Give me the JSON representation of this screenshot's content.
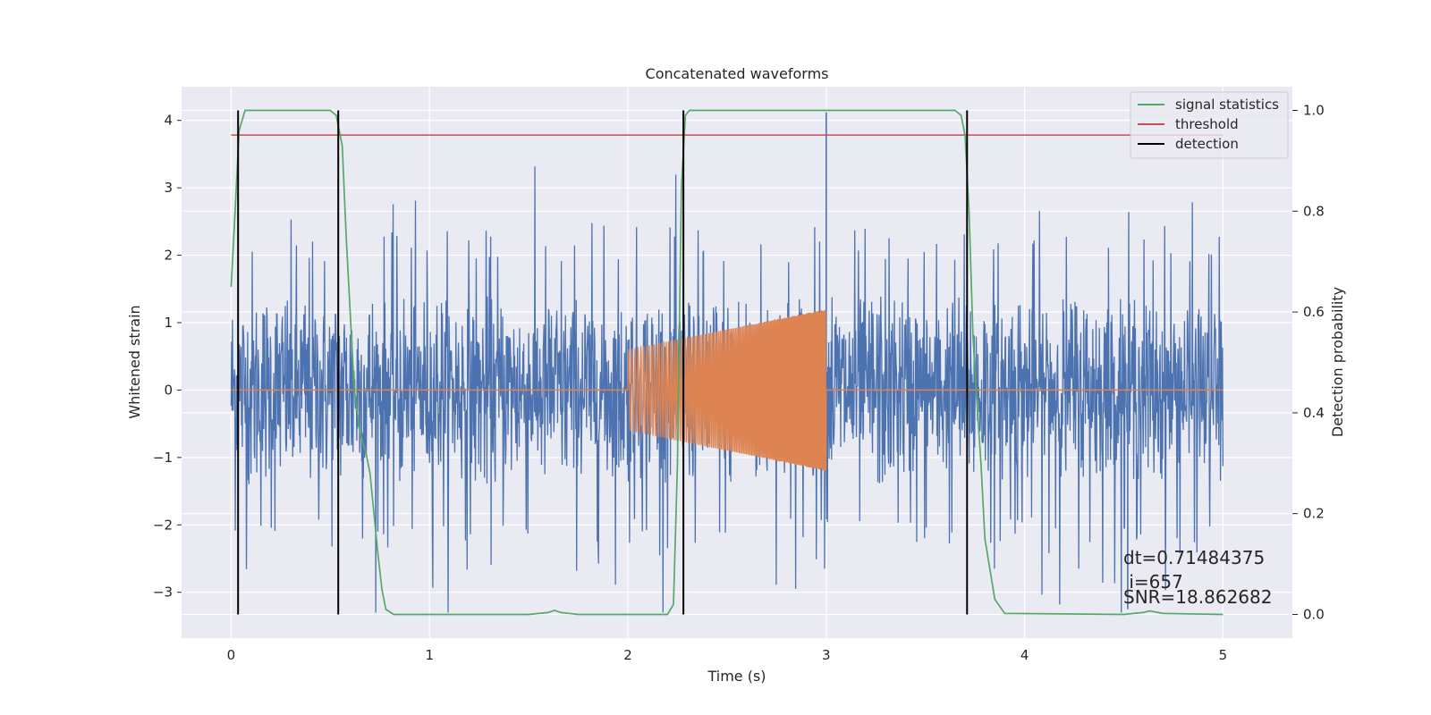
{
  "chart_data": {
    "type": "line",
    "title": "Concatenated waveforms",
    "xlabel": "Time (s)",
    "ylabel": "Whitened strain",
    "y2label": "Detection probability",
    "xlim": [
      -0.25,
      5.35
    ],
    "ylim": [
      -3.68,
      4.5
    ],
    "y2lim": [
      -0.047,
      1.047
    ],
    "xticks": [
      0,
      1,
      2,
      3,
      4,
      5
    ],
    "yticks": [
      -3,
      -2,
      -1,
      0,
      1,
      2,
      3,
      4
    ],
    "y2ticks": [
      0.0,
      0.2,
      0.4,
      0.6,
      0.8,
      1.0
    ],
    "x_tick_labels": [
      "0",
      "1",
      "2",
      "3",
      "4",
      "5"
    ],
    "y_tick_labels": [
      "−3",
      "−2",
      "−1",
      "0",
      "1",
      "2",
      "3",
      "4"
    ],
    "y2_tick_labels": [
      "0.0",
      "0.2",
      "0.4",
      "0.6",
      "0.8",
      "1.0"
    ],
    "grid": true,
    "legend_position": "top-right",
    "series": [
      {
        "name": "",
        "axis": "left",
        "color": "#4c72b0",
        "kind": "noise",
        "x_range": [
          0,
          5
        ],
        "typical_amplitude": [
          -1.8,
          1.8
        ],
        "extreme_range": [
          -3.3,
          4.15
        ],
        "peaks": [
          {
            "x": 3.0,
            "y": 4.12
          },
          {
            "x": 4.52,
            "y": -3.25
          }
        ]
      },
      {
        "name": "",
        "axis": "left",
        "color": "#dd8452",
        "kind": "chirp",
        "x": [
          0,
          2,
          3,
          5
        ],
        "y": [
          0,
          0,
          0,
          0
        ],
        "envelope": {
          "x": [
            2.0,
            3.0
          ],
          "amplitude": [
            0.6,
            1.2
          ]
        }
      },
      {
        "name": "signal statistics",
        "axis": "right",
        "color": "#55a868",
        "x": [
          0.0,
          0.02,
          0.04,
          0.07,
          0.1,
          0.15,
          0.5,
          0.53,
          0.56,
          0.58,
          0.6,
          0.62,
          0.65,
          0.68,
          0.7,
          0.72,
          0.74,
          0.76,
          0.78,
          0.82,
          1.5,
          1.6,
          1.63,
          1.66,
          1.75,
          2.2,
          2.23,
          2.25,
          2.27,
          2.29,
          2.31,
          2.35,
          2.5,
          3.65,
          3.68,
          3.7,
          3.72,
          3.74,
          3.76,
          3.78,
          3.8,
          3.85,
          3.9,
          4.5,
          4.6,
          4.63,
          4.7,
          5.0
        ],
        "y": [
          0.65,
          0.8,
          0.96,
          1.0,
          1.0,
          1.0,
          1.0,
          0.99,
          0.93,
          0.75,
          0.6,
          0.45,
          0.36,
          0.32,
          0.28,
          0.2,
          0.12,
          0.05,
          0.01,
          0.0,
          0.0,
          0.004,
          0.008,
          0.004,
          0.0,
          0.0,
          0.02,
          0.3,
          0.85,
          0.99,
          1.0,
          1.0,
          1.0,
          1.0,
          0.99,
          0.95,
          0.8,
          0.55,
          0.42,
          0.3,
          0.15,
          0.03,
          0.002,
          0.0,
          0.004,
          0.007,
          0.002,
          0.0
        ]
      },
      {
        "name": "threshold",
        "axis": "right",
        "color": "#c44e52",
        "x": [
          0,
          5
        ],
        "y": [
          0.951,
          0.951
        ]
      },
      {
        "name": "detection",
        "axis": "right",
        "color": "#000000",
        "kind": "vlines",
        "x": [
          0.035,
          0.54,
          2.28,
          3.71
        ],
        "ymin": 0.0,
        "ymax": 1.0
      }
    ],
    "annotations": [
      "dt=0.71484375",
      " i=657",
      "SNR=18.862682"
    ]
  }
}
